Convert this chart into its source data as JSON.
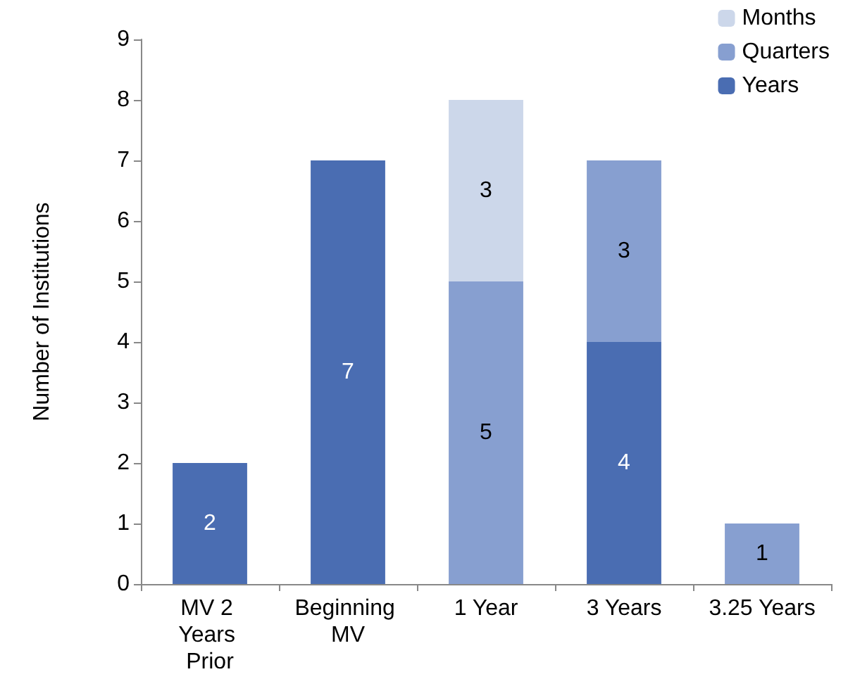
{
  "chart_data": {
    "type": "bar",
    "ylabel": "Number of Institutions",
    "categories": [
      "MV 2 Years Prior",
      "Beginning MV",
      "1 Year",
      "3 Years",
      "3.25 Years"
    ],
    "series": [
      {
        "name": "Years",
        "color": "#4a6db2",
        "values": [
          2,
          7,
          null,
          4,
          null
        ]
      },
      {
        "name": "Quarters",
        "color": "#879fd0",
        "values": [
          null,
          null,
          5,
          3,
          1
        ]
      },
      {
        "name": "Months",
        "color": "#ccd7ea",
        "values": [
          null,
          null,
          3,
          null,
          null
        ]
      }
    ],
    "stacked": true,
    "ylim": [
      0,
      9
    ],
    "yticks": [
      0,
      1,
      2,
      3,
      4,
      5,
      6,
      7,
      8,
      9
    ],
    "grid": false,
    "legend": "top right",
    "data_labels": true
  }
}
